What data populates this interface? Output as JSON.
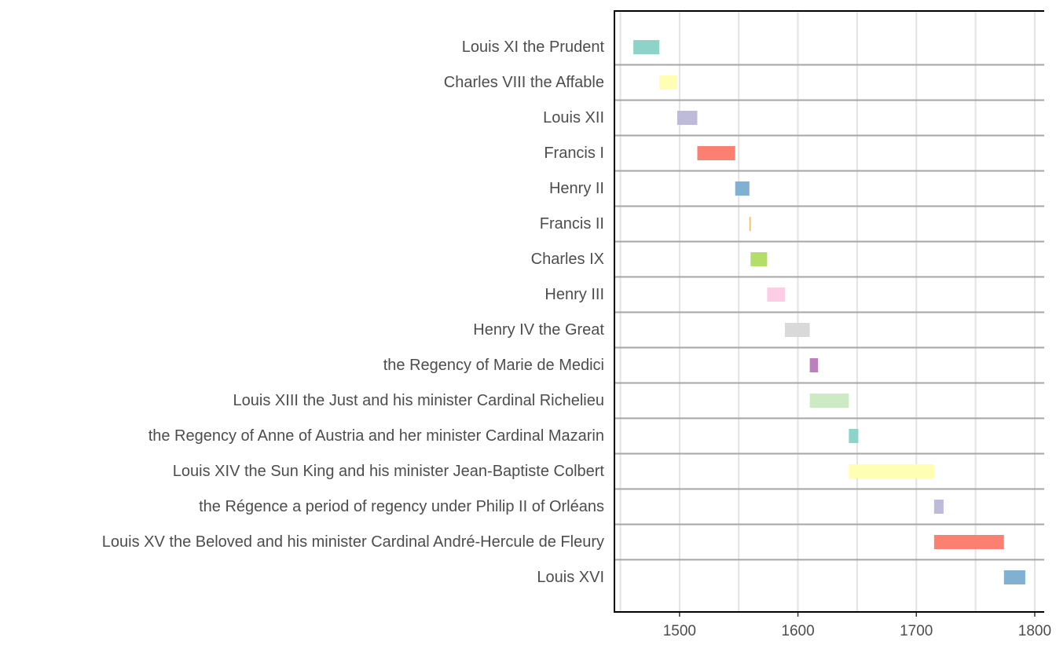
{
  "chart_data": {
    "type": "bar",
    "orientation": "horizontal-timeline",
    "title": "",
    "xlabel": "",
    "ylabel": "",
    "xlim": [
      1445,
      1808
    ],
    "xticks": [
      1500,
      1600,
      1700,
      1800
    ],
    "grid": {
      "vertical": true,
      "row_separators": true
    },
    "legend": "none",
    "series": [
      {
        "label": "Louis XI the Prudent",
        "start": 1461,
        "end": 1483,
        "color": "#8dd3c7"
      },
      {
        "label": "Charles VIII the Affable",
        "start": 1483,
        "end": 1498,
        "color": "#ffffb3"
      },
      {
        "label": "Louis XII",
        "start": 1498,
        "end": 1515,
        "color": "#bebada"
      },
      {
        "label": "Francis I",
        "start": 1515,
        "end": 1547,
        "color": "#fb8072"
      },
      {
        "label": "Henry II",
        "start": 1547,
        "end": 1559,
        "color": "#80b1d3"
      },
      {
        "label": "Francis II",
        "start": 1559,
        "end": 1560,
        "color": "#fdb462"
      },
      {
        "label": "Charles IX",
        "start": 1560,
        "end": 1574,
        "color": "#b3de69"
      },
      {
        "label": "Henry III",
        "start": 1574,
        "end": 1589,
        "color": "#fccde5"
      },
      {
        "label": "Henry IV the Great",
        "start": 1589,
        "end": 1610,
        "color": "#d9d9d9"
      },
      {
        "label": "the Regency of Marie de Medici",
        "start": 1610,
        "end": 1617,
        "color": "#bc80bd"
      },
      {
        "label": "Louis XIII the Just and his minister Cardinal Richelieu",
        "start": 1610,
        "end": 1643,
        "color": "#ccebc5"
      },
      {
        "label": "the Regency of Anne of Austria and her minister Cardinal Mazarin",
        "start": 1643,
        "end": 1651,
        "color": "#8dd3c7"
      },
      {
        "label": "Louis XIV the Sun King and his minister Jean-Baptiste Colbert",
        "start": 1643,
        "end": 1715,
        "color": "#ffffb3"
      },
      {
        "label": "the Régence a period of regency under Philip II of Orléans",
        "start": 1715,
        "end": 1723,
        "color": "#bebada"
      },
      {
        "label": "Louis XV the Beloved and his minister Cardinal André-Hercule de Fleury",
        "start": 1715,
        "end": 1774,
        "color": "#fb8072"
      },
      {
        "label": "Louis XVI",
        "start": 1774,
        "end": 1792,
        "color": "#80b1d3"
      }
    ]
  }
}
